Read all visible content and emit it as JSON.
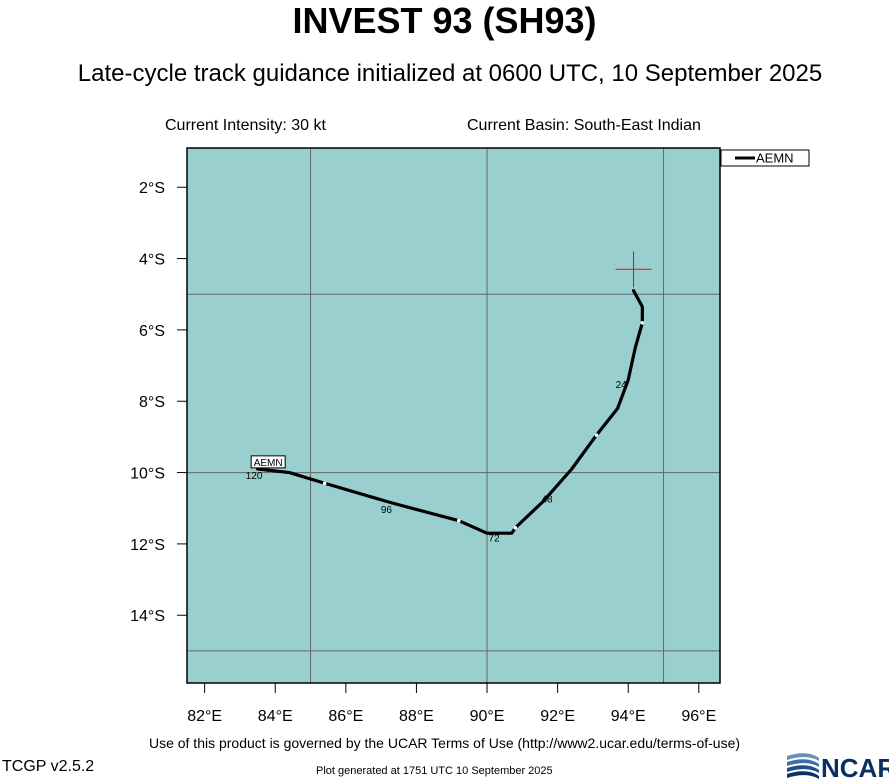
{
  "header": {
    "title": "INVEST 93 (SH93)",
    "subtitle": "Late-cycle track guidance initialized at 0600 UTC, 10 September 2025",
    "intensity": "Current Intensity: 30 kt",
    "basin": "Current Basin: South-East Indian"
  },
  "legend": {
    "entries": [
      "AEMN"
    ]
  },
  "map": {
    "background_color": "#99cfcf",
    "grid_color": "#666666",
    "lon_range": [
      81.5,
      96.6
    ],
    "lat_range": [
      -15.9,
      -0.9
    ],
    "grid_lines_lon": [
      85,
      90,
      95
    ],
    "grid_lines_lat": [
      -5,
      -10,
      -15
    ],
    "lon_ticks": [
      {
        "value": 82,
        "label": "82°E"
      },
      {
        "value": 84,
        "label": "84°E"
      },
      {
        "value": 86,
        "label": "86°E"
      },
      {
        "value": 88,
        "label": "88°E"
      },
      {
        "value": 90,
        "label": "90°E"
      },
      {
        "value": 92,
        "label": "92°E"
      },
      {
        "value": 94,
        "label": "94°E"
      },
      {
        "value": 96,
        "label": "96°E"
      }
    ],
    "lat_ticks": [
      {
        "value": -2,
        "label": "2°S"
      },
      {
        "value": -4,
        "label": "4°S"
      },
      {
        "value": -6,
        "label": "6°S"
      },
      {
        "value": -8,
        "label": "8°S"
      },
      {
        "value": -10,
        "label": "10°S"
      },
      {
        "value": -12,
        "label": "12°S"
      },
      {
        "value": -14,
        "label": "14°S"
      }
    ],
    "current_position": {
      "lon": 94.15,
      "lat": -4.3,
      "color": "#ff0000"
    },
    "track": {
      "name": "AEMN",
      "color": "#000000",
      "points": [
        {
          "lon": 94.15,
          "lat": -4.9
        },
        {
          "lon": 94.4,
          "lat": -5.35
        },
        {
          "lon": 94.4,
          "lat": -5.8
        },
        {
          "lon": 94.2,
          "lat": -6.5
        },
        {
          "lon": 94.0,
          "lat": -7.4
        },
        {
          "lon": 93.7,
          "lat": -8.2
        },
        {
          "lon": 93.1,
          "lat": -8.95
        },
        {
          "lon": 92.4,
          "lat": -9.9
        },
        {
          "lon": 91.6,
          "lat": -10.8
        },
        {
          "lon": 90.8,
          "lat": -11.55
        },
        {
          "lon": 90.7,
          "lat": -11.7
        },
        {
          "lon": 90.0,
          "lat": -11.7
        },
        {
          "lon": 89.2,
          "lat": -11.35
        },
        {
          "lon": 87.3,
          "lat": -10.85
        },
        {
          "lon": 85.4,
          "lat": -10.3
        },
        {
          "lon": 84.4,
          "lat": -10.0
        },
        {
          "lon": 83.5,
          "lat": -9.9
        }
      ],
      "tick_marks": [
        {
          "lon": 94.4,
          "lat": -5.8
        },
        {
          "lon": 93.1,
          "lat": -8.95
        },
        {
          "lon": 90.8,
          "lat": -11.55
        },
        {
          "lon": 89.2,
          "lat": -11.35
        },
        {
          "lon": 85.4,
          "lat": -10.3
        }
      ],
      "hour_labels": [
        {
          "text": "24",
          "lon": 93.8,
          "lat": -7.55
        },
        {
          "text": "48",
          "lon": 91.7,
          "lat": -10.75
        },
        {
          "text": "72",
          "lon": 90.2,
          "lat": -11.85
        },
        {
          "text": "96",
          "lon": 87.15,
          "lat": -11.05
        },
        {
          "text": "120",
          "lon": 83.4,
          "lat": -10.1
        }
      ],
      "end_label": {
        "text": "AEMN",
        "lon": 83.8,
        "lat": -9.7
      }
    }
  },
  "footer": {
    "terms": "Use of this product is governed by the UCAR Terms of Use (http://www2.ucar.edu/terms-of-use)",
    "version": "TCGP v2.5.2",
    "generated": "Plot generated at 1751 UTC   10 September 2025",
    "logo_text": "NCAR"
  }
}
